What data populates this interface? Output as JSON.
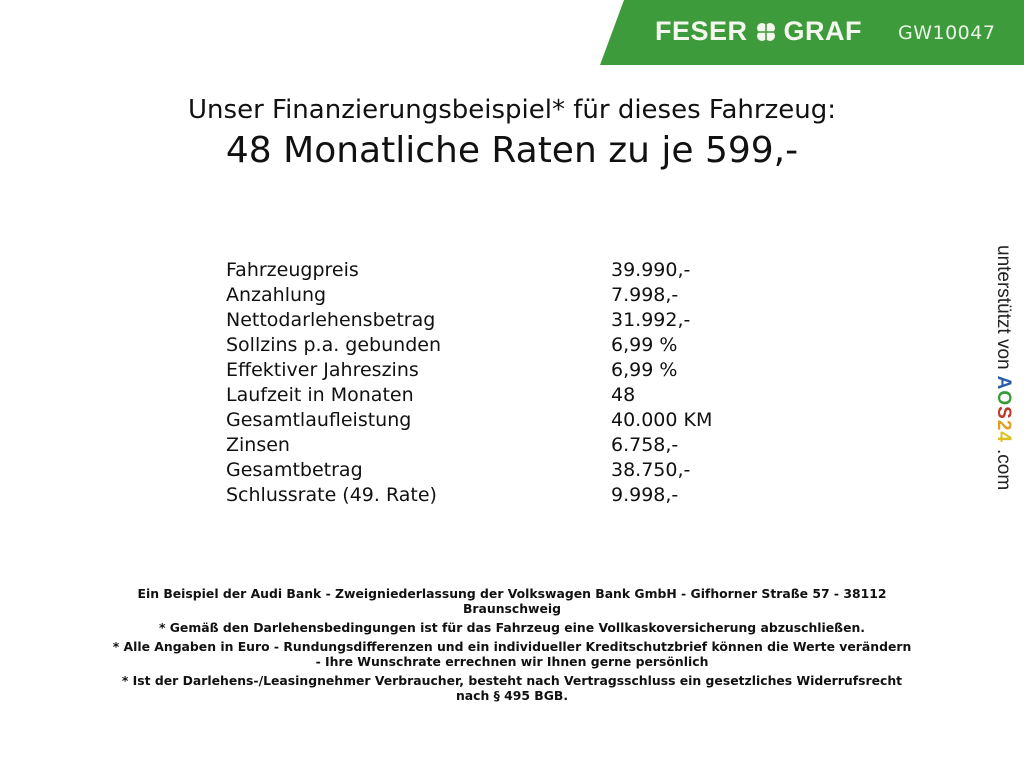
{
  "header": {
    "brand_left": "FESER",
    "brand_right": "GRAF",
    "brand_icon": "clover-icon",
    "vehicle_code": "GW10047",
    "brand_color": "#3e9b3b"
  },
  "title": {
    "line1": "Unser Finanzierungsbeispiel* für dieses Fahrzeug:",
    "line2": "48 Monatliche Raten zu je 599,-"
  },
  "rows": [
    {
      "label": "Fahrzeugpreis",
      "value": "39.990,-"
    },
    {
      "label": "Anzahlung",
      "value": "7.998,-"
    },
    {
      "label": "Nettodarlehensbetrag",
      "value": "31.992,-"
    },
    {
      "label": "Sollzins p.a. gebunden",
      "value": "6,99 %"
    },
    {
      "label": "Effektiver Jahreszins",
      "value": "6,99 %"
    },
    {
      "label": "Laufzeit in Monaten",
      "value": "48"
    },
    {
      "label": "Gesamtlaufleistung",
      "value": "40.000 KM"
    },
    {
      "label": "Zinsen",
      "value": "6.758,-"
    },
    {
      "label": "Gesamtbetrag",
      "value": "38.750,-"
    },
    {
      "label": "Schlussrate (49. Rate)",
      "value": "9.998,-"
    }
  ],
  "side": {
    "text": "unterstützt von",
    "logo": "AOS24",
    "suffix": ".com"
  },
  "footer": [
    [
      "Ein Beispiel der Audi Bank - Zweigniederlassung der Volkswagen Bank GmbH - Gifhorner Straße 57 - 38112",
      "Braunschweig"
    ],
    [
      "* Gemäß den Darlehensbedingungen ist für das Fahrzeug eine Vollkaskoversicherung abzuschließen."
    ],
    [
      "* Alle Angaben in Euro - Rundungsdifferenzen und ein individueller Kreditschutzbrief können die Werte verändern",
      "- Ihre Wunschrate errechnen wir Ihnen gerne persönlich"
    ],
    [
      "* Ist der Darlehens-/Leasingnehmer Verbraucher, besteht nach Vertragsschluss ein gesetzliches Widerrufsrecht",
      "nach § 495 BGB."
    ]
  ]
}
